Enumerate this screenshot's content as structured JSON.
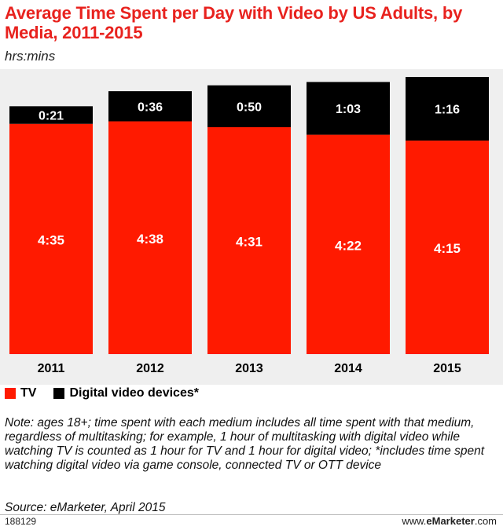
{
  "chart_data": {
    "type": "bar",
    "stacked": true,
    "title": "Average Time Spent per Day with Video by US Adults, by Media, 2011-2015",
    "subtitle": "hrs:mins",
    "categories": [
      "2011",
      "2012",
      "2013",
      "2014",
      "2015"
    ],
    "series": [
      {
        "name": "TV",
        "color": "#ff1a00",
        "labels": [
          "4:35",
          "4:38",
          "4:31",
          "4:22",
          "4:15"
        ],
        "values": [
          275,
          278,
          271,
          262,
          255
        ]
      },
      {
        "name": "Digital video devices*",
        "color": "#000000",
        "labels": [
          "0:21",
          "0:36",
          "0:50",
          "1:03",
          "1:16"
        ],
        "values": [
          21,
          36,
          50,
          63,
          76
        ]
      }
    ],
    "ylim": [
      0,
      331
    ],
    "legend_position": "bottom-left",
    "grid": false
  },
  "note": "Note: ages 18+; time spent with each medium includes all time spent with that medium, regardless of multitasking; for example, 1 hour of multitasking with digital video while watching TV is counted as 1 hour for TV and 1 hour for digital video; *includes time spent watching digital video via game console, connected TV or OTT device",
  "source": "Source: eMarketer, April 2015",
  "chart_id": "188129",
  "brand": {
    "prefix": "www.",
    "name": "eMarketer",
    "suffix": ".com"
  }
}
